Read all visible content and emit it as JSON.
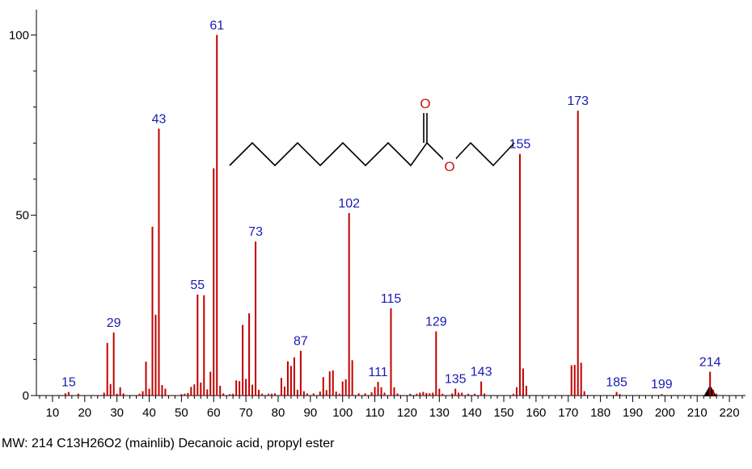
{
  "chart_data": {
    "type": "bar",
    "title": "",
    "xlabel": "",
    "ylabel": "",
    "xlim": [
      5,
      225
    ],
    "ylim": [
      0,
      107
    ],
    "x_ticks": [
      10,
      20,
      30,
      40,
      50,
      60,
      70,
      80,
      90,
      100,
      110,
      120,
      130,
      140,
      150,
      160,
      170,
      180,
      190,
      200,
      210,
      220
    ],
    "y_ticks": [
      0,
      50,
      100
    ],
    "bar_color": "#c00000",
    "label_color": "#1a1ab4",
    "peaks": [
      {
        "x": 14,
        "y": 0.6
      },
      {
        "x": 15,
        "y": 1.0
      },
      {
        "x": 18,
        "y": 0.5
      },
      {
        "x": 26,
        "y": 0.8
      },
      {
        "x": 27,
        "y": 14.6
      },
      {
        "x": 28,
        "y": 3.2
      },
      {
        "x": 29,
        "y": 17.5
      },
      {
        "x": 30,
        "y": 0.5
      },
      {
        "x": 31,
        "y": 2.3
      },
      {
        "x": 32,
        "y": 0.6
      },
      {
        "x": 37,
        "y": 0.5
      },
      {
        "x": 38,
        "y": 1.2
      },
      {
        "x": 39,
        "y": 9.4
      },
      {
        "x": 40,
        "y": 1.9
      },
      {
        "x": 41,
        "y": 46.8
      },
      {
        "x": 42,
        "y": 22.4
      },
      {
        "x": 43,
        "y": 74.0
      },
      {
        "x": 44,
        "y": 2.9
      },
      {
        "x": 45,
        "y": 1.9
      },
      {
        "x": 50,
        "y": 0.4
      },
      {
        "x": 51,
        "y": 0.5
      },
      {
        "x": 52,
        "y": 0.7
      },
      {
        "x": 53,
        "y": 2.4
      },
      {
        "x": 54,
        "y": 3.1
      },
      {
        "x": 55,
        "y": 28.0
      },
      {
        "x": 56,
        "y": 3.6
      },
      {
        "x": 57,
        "y": 27.8
      },
      {
        "x": 58,
        "y": 1.7
      },
      {
        "x": 59,
        "y": 6.6
      },
      {
        "x": 60,
        "y": 63.0
      },
      {
        "x": 61,
        "y": 100.0
      },
      {
        "x": 62,
        "y": 2.7
      },
      {
        "x": 63,
        "y": 0.6
      },
      {
        "x": 65,
        "y": 0.4
      },
      {
        "x": 66,
        "y": 0.5
      },
      {
        "x": 67,
        "y": 4.2
      },
      {
        "x": 68,
        "y": 4.0
      },
      {
        "x": 69,
        "y": 19.6
      },
      {
        "x": 70,
        "y": 4.6
      },
      {
        "x": 71,
        "y": 22.8
      },
      {
        "x": 72,
        "y": 3.0
      },
      {
        "x": 73,
        "y": 42.7
      },
      {
        "x": 74,
        "y": 1.6
      },
      {
        "x": 75,
        "y": 0.5
      },
      {
        "x": 77,
        "y": 0.5
      },
      {
        "x": 78,
        "y": 0.5
      },
      {
        "x": 79,
        "y": 0.6
      },
      {
        "x": 81,
        "y": 4.9
      },
      {
        "x": 82,
        "y": 2.5
      },
      {
        "x": 83,
        "y": 9.5
      },
      {
        "x": 84,
        "y": 8.2
      },
      {
        "x": 85,
        "y": 10.6
      },
      {
        "x": 86,
        "y": 1.6
      },
      {
        "x": 87,
        "y": 12.4
      },
      {
        "x": 88,
        "y": 1.2
      },
      {
        "x": 89,
        "y": 0.6
      },
      {
        "x": 91,
        "y": 0.6
      },
      {
        "x": 93,
        "y": 1.1
      },
      {
        "x": 94,
        "y": 5.1
      },
      {
        "x": 95,
        "y": 1.5
      },
      {
        "x": 96,
        "y": 6.7
      },
      {
        "x": 97,
        "y": 7.0
      },
      {
        "x": 98,
        "y": 1.1
      },
      {
        "x": 99,
        "y": 0.5
      },
      {
        "x": 100,
        "y": 3.9
      },
      {
        "x": 101,
        "y": 4.5
      },
      {
        "x": 102,
        "y": 50.6
      },
      {
        "x": 103,
        "y": 9.8
      },
      {
        "x": 105,
        "y": 0.6
      },
      {
        "x": 107,
        "y": 0.6
      },
      {
        "x": 109,
        "y": 0.9
      },
      {
        "x": 110,
        "y": 2.4
      },
      {
        "x": 111,
        "y": 3.8
      },
      {
        "x": 112,
        "y": 2.3
      },
      {
        "x": 113,
        "y": 0.8
      },
      {
        "x": 115,
        "y": 24.2
      },
      {
        "x": 116,
        "y": 2.3
      },
      {
        "x": 117,
        "y": 0.6
      },
      {
        "x": 121,
        "y": 0.5
      },
      {
        "x": 123,
        "y": 0.5
      },
      {
        "x": 124,
        "y": 0.8
      },
      {
        "x": 125,
        "y": 1.0
      },
      {
        "x": 126,
        "y": 0.7
      },
      {
        "x": 127,
        "y": 0.6
      },
      {
        "x": 128,
        "y": 0.8
      },
      {
        "x": 129,
        "y": 17.8
      },
      {
        "x": 130,
        "y": 1.9
      },
      {
        "x": 131,
        "y": 0.5
      },
      {
        "x": 134,
        "y": 0.6
      },
      {
        "x": 135,
        "y": 1.9
      },
      {
        "x": 136,
        "y": 0.8
      },
      {
        "x": 137,
        "y": 0.8
      },
      {
        "x": 139,
        "y": 0.5
      },
      {
        "x": 141,
        "y": 0.5
      },
      {
        "x": 143,
        "y": 3.9
      },
      {
        "x": 144,
        "y": 0.6
      },
      {
        "x": 153,
        "y": 0.5
      },
      {
        "x": 154,
        "y": 2.3
      },
      {
        "x": 155,
        "y": 67.0
      },
      {
        "x": 156,
        "y": 7.5
      },
      {
        "x": 157,
        "y": 2.7
      },
      {
        "x": 171,
        "y": 8.4
      },
      {
        "x": 172,
        "y": 8.5
      },
      {
        "x": 173,
        "y": 79.0
      },
      {
        "x": 174,
        "y": 9.1
      },
      {
        "x": 175,
        "y": 1.2
      },
      {
        "x": 185,
        "y": 1.0
      },
      {
        "x": 186,
        "y": 0.4
      },
      {
        "x": 199,
        "y": 0.4
      },
      {
        "x": 214,
        "y": 6.6
      },
      {
        "x": 215,
        "y": 1.6
      },
      {
        "x": 216,
        "y": 0.5
      }
    ],
    "peak_labels": [
      "15",
      "29",
      "43",
      "55",
      "61",
      "73",
      "87",
      "102",
      "111",
      "115",
      "129",
      "135",
      "143",
      "155",
      "173",
      "185",
      "199",
      "214"
    ],
    "marker": {
      "x": 214,
      "shape": "triangle"
    },
    "structure_atom_labels": [
      "O",
      "O"
    ]
  },
  "caption": "MW: 214 C13H26O2 (mainlib) Decanoic acid, propyl ester"
}
